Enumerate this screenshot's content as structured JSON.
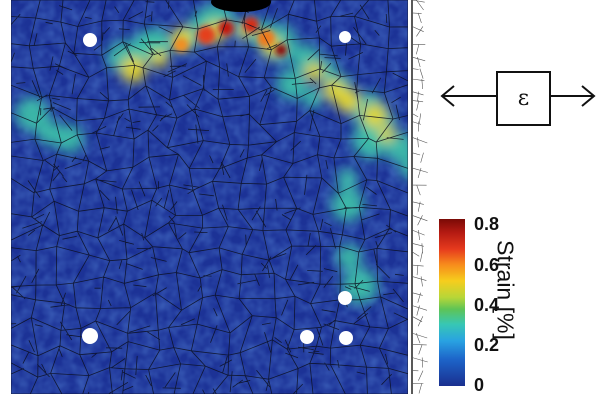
{
  "figure": {
    "description_free": true,
    "colorbar": {
      "title": "Strain [%]",
      "ticks": [
        "0.8",
        "0.6",
        "0.4",
        "0.2",
        "0"
      ],
      "range": [
        0,
        0.8
      ],
      "colors": [
        "#1a2f8f",
        "#1d64c9",
        "#29a2e2",
        "#37c7b4",
        "#5ec456",
        "#b7d638",
        "#f6cd1d",
        "#f7891c",
        "#e63a1d",
        "#b41a12",
        "#7a0a06"
      ]
    },
    "load_symbol": "ε",
    "map_background": "#1a2f8f"
  }
}
